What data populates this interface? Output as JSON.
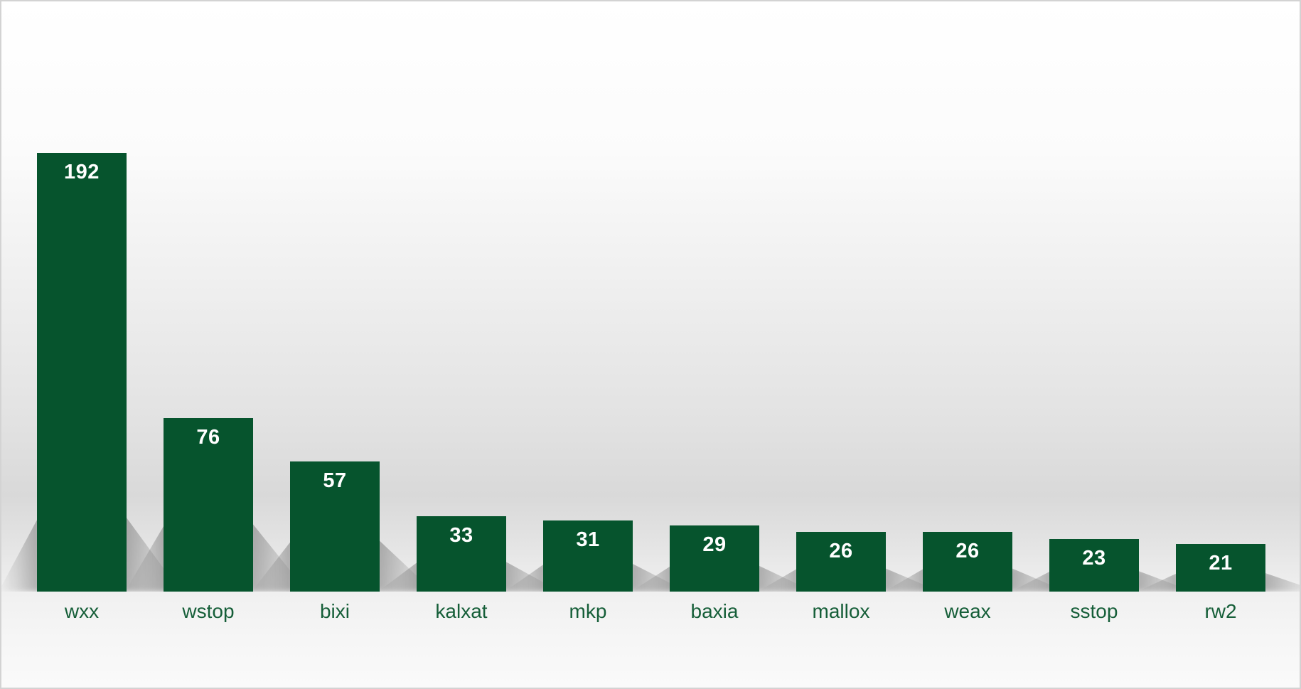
{
  "chart_data": {
    "type": "bar",
    "categories": [
      "wxx",
      "wstop",
      "bixi",
      "kalxat",
      "mkp",
      "baxia",
      "mallox",
      "weax",
      "sstop",
      "rw2"
    ],
    "values": [
      192,
      76,
      57,
      33,
      31,
      29,
      26,
      26,
      23,
      21
    ],
    "data_labels": "inside-top",
    "legend_position": "none",
    "grid": false,
    "axes_visible": false,
    "bar_color": "#06542d",
    "data_label_color": "#ffffff",
    "category_label_color": "#155e38",
    "border_color": "#d3d3d3",
    "background_style": "white-to-gray vertical stage gradient with perspective bar shadows"
  }
}
